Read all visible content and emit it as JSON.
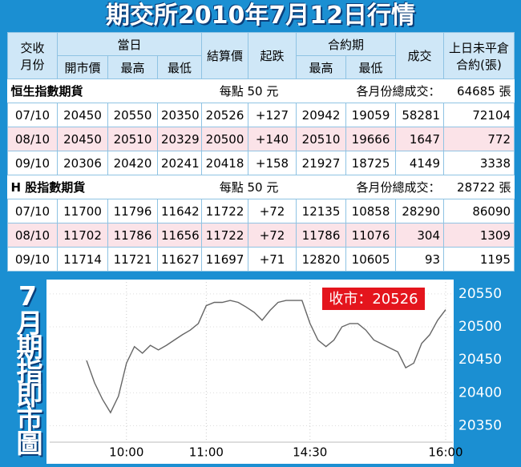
{
  "header": {
    "title": "期交所2010年7月12日行情"
  },
  "table": {
    "head": {
      "month": [
        "交收",
        "月份"
      ],
      "today": "當日",
      "open": "開市價",
      "high": "最高",
      "low": "最低",
      "settle": "結算價",
      "change": "起跌",
      "contract": "合約期",
      "c_high": "最高",
      "c_low": "最低",
      "volume": "成交",
      "oi": [
        "上日未平倉",
        "合約(張)"
      ]
    },
    "sections": [
      {
        "name": "恒生指數期貨",
        "unit": "每點 50 元",
        "total_label": "各月份總成交：",
        "total": "64685 張",
        "rows": [
          [
            "07/10",
            "20450",
            "20550",
            "20350",
            "20526",
            "+127",
            "20942",
            "19059",
            "58281",
            "72104"
          ],
          [
            "08/10",
            "20450",
            "20510",
            "20329",
            "20500",
            "+140",
            "20510",
            "19666",
            "1647",
            "772"
          ],
          [
            "09/10",
            "20306",
            "20420",
            "20241",
            "20418",
            "+158",
            "21927",
            "18725",
            "4149",
            "3338"
          ]
        ]
      },
      {
        "name": "H 股指數期貨",
        "unit": "每點 50 元",
        "total_label": "各月份總成交：",
        "total": "28722 張",
        "rows": [
          [
            "07/10",
            "11700",
            "11796",
            "11642",
            "11722",
            "+72",
            "12135",
            "10858",
            "28290",
            "86090"
          ],
          [
            "08/10",
            "11702",
            "11786",
            "11656",
            "11722",
            "+72",
            "11786",
            "11076",
            "304",
            "1309"
          ],
          [
            "09/10",
            "11714",
            "11721",
            "11627",
            "11697",
            "+71",
            "12820",
            "10605",
            "93",
            "1195"
          ]
        ]
      }
    ]
  },
  "chart_data": {
    "type": "line",
    "side_label": "7月期指即市圖",
    "annotation": "收市：20526",
    "categories": [
      null,
      null,
      null,
      null,
      null,
      "10:00",
      null,
      null,
      null,
      null,
      null,
      null,
      null,
      null,
      null,
      "11:00",
      null,
      null,
      null,
      null,
      null,
      null,
      null,
      null,
      null,
      null,
      null,
      null,
      "14:30",
      null,
      null,
      null,
      null,
      null,
      null,
      null,
      null,
      null,
      null,
      null,
      null,
      null,
      null,
      null,
      null,
      "16:00"
    ],
    "values": [
      20449,
      20415,
      20390,
      20370,
      20395,
      20445,
      20470,
      20460,
      20472,
      20465,
      20472,
      20480,
      20488,
      20495,
      20505,
      20532,
      20537,
      20537,
      20540,
      20537,
      20530,
      20522,
      20510,
      20525,
      20537,
      20540,
      20540,
      20540,
      20505,
      20480,
      20470,
      20480,
      20500,
      20505,
      20505,
      20495,
      20480,
      20474,
      20468,
      20462,
      20438,
      20445,
      20475,
      20488,
      20510,
      20526
    ],
    "color": "#666666",
    "ylim": [
      20330,
      20568
    ],
    "yticks": [
      20350,
      20400,
      20450,
      20500,
      20550
    ],
    "grid": true
  }
}
